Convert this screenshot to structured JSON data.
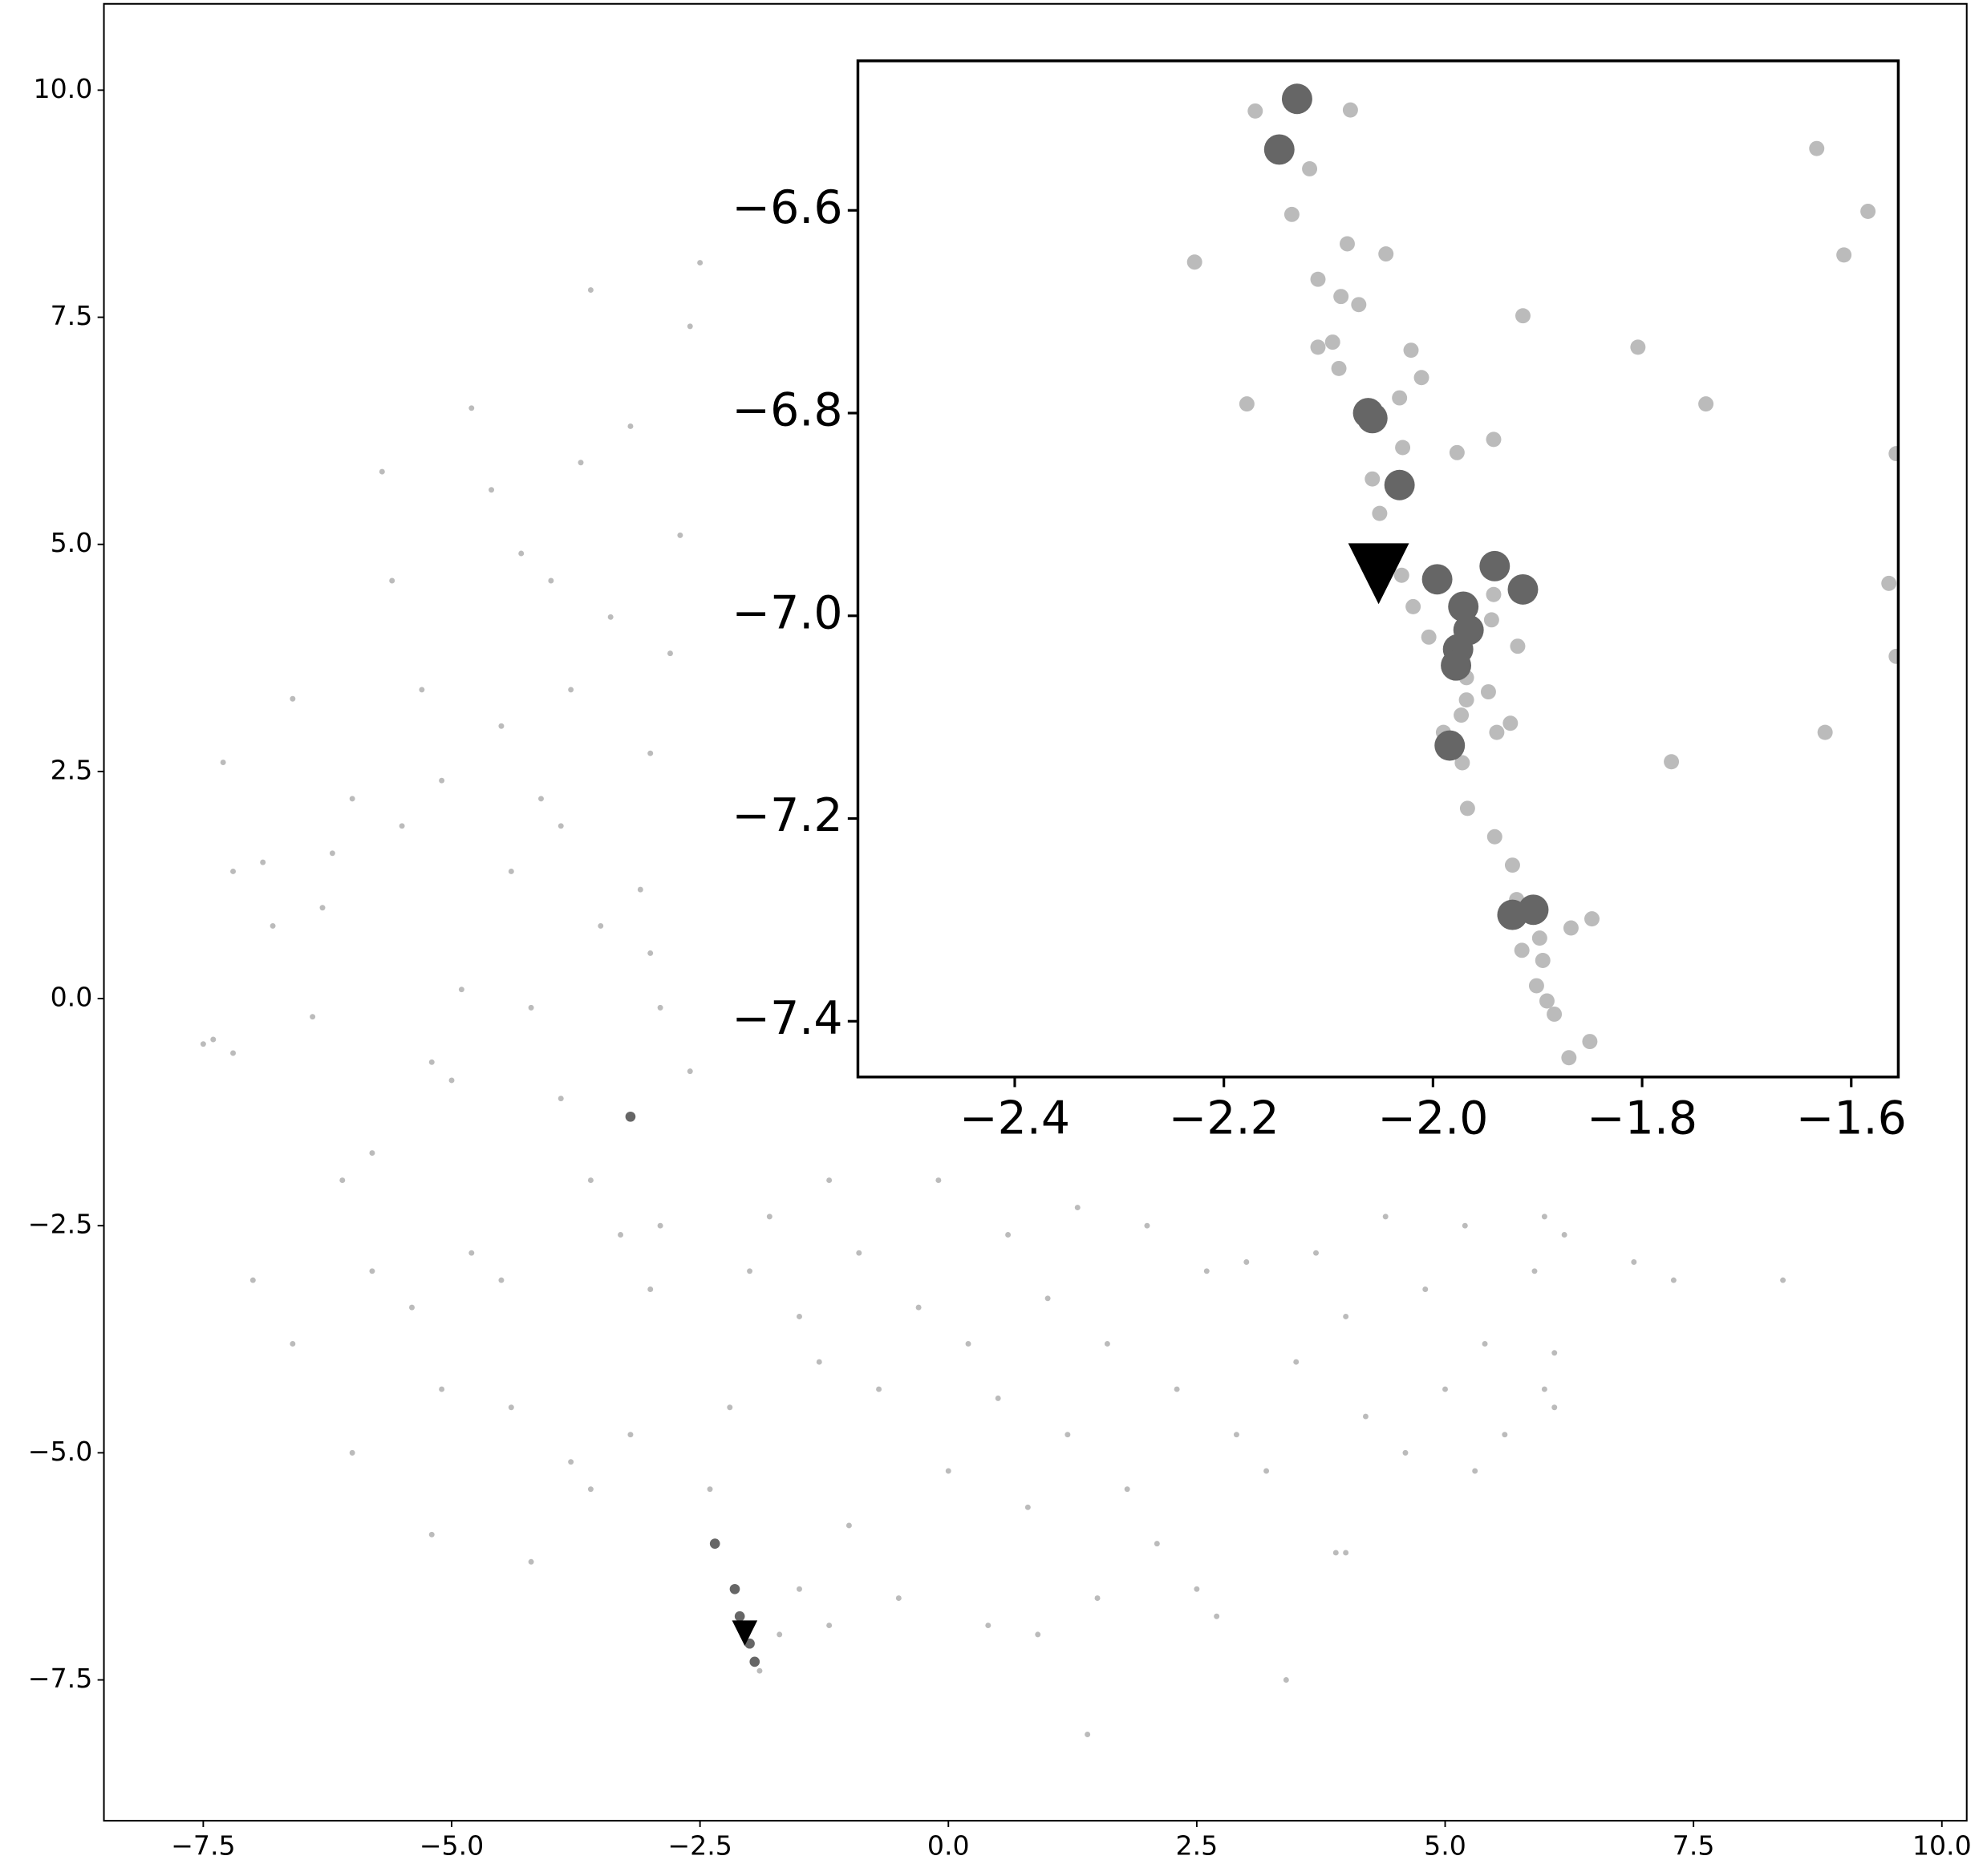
{
  "chart_data": [
    {
      "type": "scatter",
      "xlim": [
        -8.5,
        10.25
      ],
      "ylim": [
        -9.05,
        10.95
      ],
      "xticks": [
        {
          "value": -7.5,
          "label": "−7.5"
        },
        {
          "value": -5,
          "label": "−5.0"
        },
        {
          "value": -2.5,
          "label": "−2.5"
        },
        {
          "value": 0,
          "label": "0.0"
        },
        2.5,
        {
          "value": 5,
          "label": "5.0"
        },
        7.5,
        {
          "value": 10,
          "label": "10.0"
        }
      ],
      "yticks": [
        {
          "value": -7.5,
          "label": "−7.5"
        },
        {
          "value": -5,
          "label": "−5.0"
        },
        {
          "value": -2.5,
          "label": "−2.5"
        },
        {
          "value": 0,
          "label": "0.0"
        },
        2.5,
        {
          "value": 5,
          "label": "5.0"
        },
        7.5,
        {
          "value": 10,
          "label": "10.0"
        }
      ],
      "series": [
        {
          "color": "#bbbbbb",
          "marker": "circle",
          "x": [
            -7.5,
            -7.4,
            -7.2,
            -7.3,
            -7.2,
            -6.9,
            -6.8,
            -6.6,
            -6.4,
            -6.2,
            -6.0,
            -6.1,
            -5.8,
            -5.6,
            -5.7,
            -5.5,
            -5.3,
            -5.2,
            -5.0,
            -5.1,
            -4.8,
            -4.6,
            -4.5,
            -4.4,
            -4.3,
            -4.2,
            -4.1,
            -4.0,
            -3.9,
            -3.8,
            -3.7,
            -3.6,
            -3.6,
            -3.5,
            -3.4,
            -3.2,
            -3.1,
            -3.0,
            -2.9,
            -2.8,
            -2.7,
            -2.6,
            -2.5,
            -2.9,
            -3.3,
            -5.8,
            -7.0,
            -6.6,
            -6.0,
            -5.2,
            -5.1,
            -4.4,
            -4.2,
            -3.8,
            -3.6,
            -3.2,
            -4.5,
            -6.3,
            -4.9,
            -3.9,
            -3.0,
            -2.6,
            -5.4,
            -4.8,
            -3.0,
            -2.4,
            -2.2,
            -2.0,
            -1.8,
            -1.5,
            -1.3,
            -1.2,
            -1.0,
            -0.9,
            -0.7,
            -0.5,
            -0.3,
            -0.1,
            0.0,
            0.2,
            0.4,
            0.5,
            0.6,
            0.8,
            1.0,
            1.2,
            1.3,
            1.4,
            1.5,
            1.6,
            1.8,
            2.0,
            2.1,
            2.3,
            2.5,
            2.6,
            2.7,
            2.9,
            3.0,
            3.2,
            3.4,
            3.5,
            3.7,
            3.9,
            4.0,
            4.2,
            4.4,
            4.6,
            4.8,
            5.0,
            5.2,
            5.4,
            5.6,
            5.9,
            6.0,
            6.0,
            6.1,
            6.1,
            6.2,
            6.9,
            7.3,
            8.4,
            -1.9,
            -1.7,
            -1.5,
            -1.2,
            0.9,
            4.0,
            5.3
          ],
          "values": [
            -0.5,
            -0.45,
            -0.6,
            2.6,
            1.4,
            1.5,
            0.8,
            3.3,
            -0.2,
            1.6,
            2.2,
            -2.0,
            -1.7,
            4.6,
            5.8,
            1.9,
            3.4,
            -0.7,
            -0.9,
            2.4,
            6.5,
            5.6,
            3.0,
            1.4,
            4.9,
            -0.1,
            2.2,
            4.6,
            -1.1,
            3.4,
            5.9,
            7.8,
            -2.0,
            0.8,
            4.2,
            6.3,
            1.2,
            2.7,
            -0.1,
            3.8,
            5.1,
            7.4,
            8.1,
            -2.5,
            -2.6,
            -3.0,
            -3.1,
            -3.8,
            -5.0,
            -5.9,
            -4.3,
            -4.5,
            -6.2,
            -5.1,
            -5.4,
            -4.8,
            -3.1,
            1.0,
            0.1,
            1.9,
            0.5,
            -0.8,
            -3.4,
            -2.8,
            -3.2,
            -5.4,
            -4.5,
            -3.0,
            -2.4,
            -3.5,
            -4.0,
            -2.0,
            -5.8,
            -2.8,
            -4.3,
            -6.6,
            -3.4,
            -2.0,
            -5.2,
            -3.8,
            -6.9,
            -4.4,
            -2.6,
            -5.6,
            -3.3,
            -4.8,
            -2.3,
            -8.1,
            -6.6,
            -3.8,
            -5.4,
            -2.5,
            -6.0,
            -4.3,
            -6.5,
            -3.0,
            -6.8,
            -4.8,
            -2.9,
            -5.2,
            -7.5,
            -4.0,
            -2.8,
            -6.1,
            -3.5,
            -4.6,
            -2.4,
            -5.0,
            -3.2,
            -4.3,
            -2.5,
            -3.8,
            -4.8,
            -3.0,
            -2.4,
            -4.3,
            -4.5,
            -3.9,
            -2.6,
            -2.9,
            -3.1,
            -3.1,
            -7.4,
            -7.0,
            -6.5,
            -6.9,
            -7.0,
            -6.1,
            -5.2
          ]
        },
        {
          "color": "#666666",
          "marker": "circle",
          "x": [
            -3.2,
            -2.35,
            -2.15,
            -2.1,
            -2.05,
            -2.0,
            -1.95
          ],
          "values": [
            -1.3,
            -6.0,
            -6.5,
            -6.8,
            -7.0,
            -7.1,
            -7.3
          ]
        },
        {
          "color": "#000000",
          "marker": "triangle_down",
          "x": [
            -2.05
          ],
          "values": [
            -6.95
          ]
        }
      ]
    },
    {
      "type": "scatter",
      "xlim": [
        -2.55,
        -1.555
      ],
      "ylim": [
        -7.455,
        -6.4525
      ],
      "xticks": [
        {
          "value": -2.4,
          "label": "−2.4"
        },
        {
          "value": -2.2,
          "label": "−2.2"
        },
        {
          "value": -2,
          "label": "−2.0"
        },
        {
          "value": -1.8,
          "label": "−1.8"
        },
        {
          "value": -1.6,
          "label": "−1.6"
        }
      ],
      "yticks": [
        {
          "value": -6.6,
          "label": "−6.6"
        },
        {
          "value": -6.8,
          "label": "−6.8"
        },
        {
          "value": -7,
          "label": "−7.0"
        },
        {
          "value": -7.2,
          "label": "−7.2"
        },
        {
          "value": -7.4,
          "label": "−7.4"
        }
      ],
      "series": [
        {
          "color": "#bbbbbb",
          "marker": "circle",
          "x": [
            -2.17,
            -2.079,
            -2.118,
            -2.135,
            -2.228,
            -2.082,
            -2.045,
            -2.11,
            -2.088,
            -2.071,
            -1.914,
            -2.096,
            -2.11,
            -2.09,
            -2.021,
            -2.011,
            -2.032,
            -2.178,
            -1.804,
            -1.739,
            -1.633,
            -1.584,
            -1.607,
            -1.557,
            -1.564,
            -1.557,
            -2.029,
            -2.058,
            -2.051,
            -1.977,
            -1.942,
            -2.03,
            -2.019,
            -2.004,
            -1.942,
            -1.944,
            -1.919,
            -1.968,
            -1.968,
            -1.947,
            -1.973,
            -1.926,
            -1.939,
            -1.99,
            -1.972,
            -1.967,
            -1.941,
            -1.924,
            -1.92,
            -1.898,
            -1.915,
            -1.868,
            -1.848,
            -1.895,
            -1.901,
            -1.891,
            -1.884,
            -1.85,
            -1.87,
            -1.625,
            -1.772
          ],
          "values": [
            -6.502,
            -6.501,
            -6.559,
            -6.604,
            -6.651,
            -6.633,
            -6.643,
            -6.668,
            -6.685,
            -6.693,
            -6.704,
            -6.73,
            -6.735,
            -6.756,
            -6.738,
            -6.765,
            -6.785,
            -6.791,
            -6.735,
            -6.791,
            -6.539,
            -6.601,
            -6.644,
            -6.84,
            -6.968,
            -7.04,
            -6.834,
            -6.865,
            -6.899,
            -6.839,
            -6.826,
            -6.96,
            -6.991,
            -7.021,
            -6.979,
            -7.004,
            -7.03,
            -7.061,
            -7.083,
            -7.075,
            -7.098,
            -7.106,
            -7.115,
            -7.115,
            -7.145,
            -7.19,
            -7.218,
            -7.246,
            -7.28,
            -7.318,
            -7.33,
            -7.308,
            -7.299,
            -7.34,
            -7.365,
            -7.38,
            -7.393,
            -7.42,
            -7.436,
            -7.115,
            -7.144
          ]
        },
        {
          "color": "#666666",
          "marker": "circle",
          "x": [
            -2.13,
            -2.147,
            -2.062,
            -2.058,
            -2.032,
            -1.996,
            -1.941,
            -1.914,
            -1.971,
            -1.966,
            -1.976,
            -1.978,
            -1.984,
            -1.924,
            -1.904
          ],
          "values": [
            -6.49,
            -6.54,
            -6.8,
            -6.805,
            -6.871,
            -6.964,
            -6.951,
            -6.974,
            -6.991,
            -7.014,
            -7.033,
            -7.049,
            -7.128,
            -7.295,
            -7.29
          ]
        },
        {
          "color": "#000000",
          "marker": "triangle_down",
          "x": [
            -2.052
          ],
          "values": [
            -6.951
          ]
        }
      ]
    }
  ]
}
